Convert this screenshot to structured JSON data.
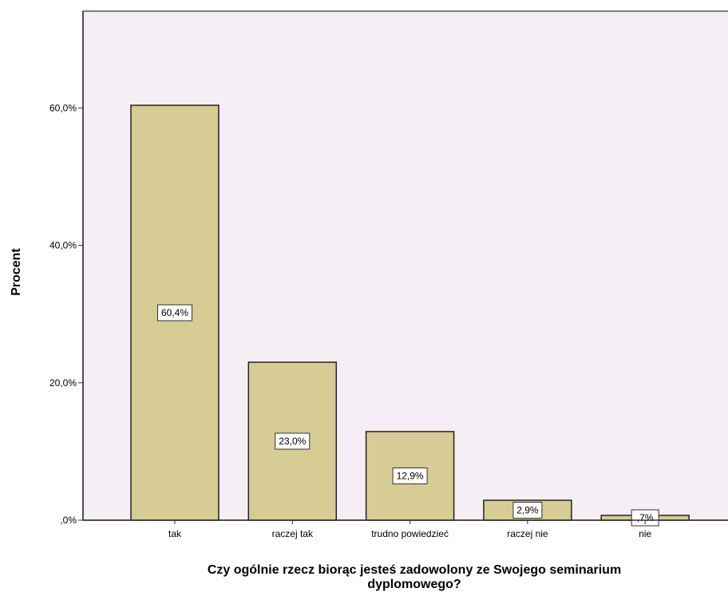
{
  "chart_data": {
    "type": "bar",
    "categories": [
      "tak",
      "raczej tak",
      "trudno powiedzieć",
      "raczej nie",
      "nie"
    ],
    "values": [
      60.4,
      23.0,
      12.9,
      2.9,
      0.7
    ],
    "data_labels": [
      "60,4%",
      "23,0%",
      "12,9%",
      "2,9%",
      ",7%"
    ],
    "ylabel": "Procent",
    "xlabel_lines": [
      "Czy ogólnie rzecz biorąc jesteś zadowolony ze Swojego seminarium",
      "dyplomowego?"
    ],
    "yticks": [
      0,
      20,
      40,
      60
    ],
    "ytick_labels": [
      ",0%",
      "20,0%",
      "40,0%",
      "60,0%"
    ],
    "ylim": [
      0,
      74.1
    ],
    "grid": false,
    "colors": {
      "plot_background": "#f5eff5",
      "bar_fill": "#d6cc94",
      "bar_stroke": "#222222",
      "label_box_fill": "#ffffff"
    }
  }
}
